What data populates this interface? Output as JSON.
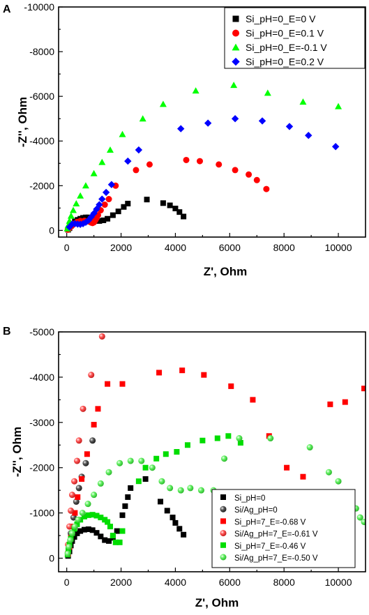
{
  "chart_data": [
    {
      "panel_label": "A",
      "type": "scatter",
      "xlabel": "Z', Ohm",
      "ylabel": "-Z'', Ohm",
      "xlim": [
        -300,
        11000
      ],
      "ylim": [
        -300,
        10000
      ],
      "y_axis_inverted_sign_labels": true,
      "xticks": [
        0,
        2000,
        4000,
        6000,
        8000,
        10000
      ],
      "xtick_labels": [
        "0",
        "2000",
        "4000",
        "6000",
        "8000",
        "10000"
      ],
      "yticks": [
        0,
        2000,
        4000,
        6000,
        8000,
        10000
      ],
      "ytick_labels": [
        "0",
        "-2000",
        "-4000",
        "-6000",
        "-8000",
        "-10000"
      ],
      "legend_position": "top-right",
      "grid": false,
      "series": [
        {
          "name": "Si_pH=0_E=0 V",
          "marker": "square",
          "color": "#000000",
          "points": [
            [
              50,
              30
            ],
            [
              100,
              100
            ],
            [
              150,
              200
            ],
            [
              220,
              300
            ],
            [
              300,
              400
            ],
            [
              400,
              470
            ],
            [
              500,
              520
            ],
            [
              600,
              560
            ],
            [
              700,
              580
            ],
            [
              800,
              580
            ],
            [
              900,
              540
            ],
            [
              1000,
              480
            ],
            [
              1100,
              440
            ],
            [
              1200,
              420
            ],
            [
              1350,
              450
            ],
            [
              1500,
              520
            ],
            [
              1700,
              680
            ],
            [
              1900,
              850
            ],
            [
              2100,
              1050
            ],
            [
              2250,
              1200
            ],
            [
              2950,
              1380
            ],
            [
              3550,
              1220
            ],
            [
              3800,
              1120
            ],
            [
              4000,
              980
            ],
            [
              4150,
              820
            ],
            [
              4300,
              620
            ]
          ]
        },
        {
          "name": "Si_pH=0_E=0.1 V",
          "marker": "circle",
          "color": "#ff0000",
          "points": [
            [
              40,
              30
            ],
            [
              80,
              80
            ],
            [
              130,
              150
            ],
            [
              200,
              220
            ],
            [
              280,
              300
            ],
            [
              380,
              380
            ],
            [
              500,
              420
            ],
            [
              650,
              430
            ],
            [
              800,
              400
            ],
            [
              900,
              350
            ],
            [
              950,
              330
            ],
            [
              1000,
              360
            ],
            [
              1050,
              450
            ],
            [
              1100,
              550
            ],
            [
              1150,
              680
            ],
            [
              1250,
              900
            ],
            [
              1400,
              1150
            ],
            [
              1550,
              1400
            ],
            [
              1800,
              2000
            ],
            [
              2550,
              2700
            ],
            [
              3050,
              2950
            ],
            [
              4400,
              3150
            ],
            [
              4900,
              3100
            ],
            [
              5600,
              2950
            ],
            [
              6200,
              2700
            ],
            [
              6700,
              2500
            ],
            [
              7000,
              2250
            ],
            [
              7350,
              1850
            ]
          ]
        },
        {
          "name": "Si_pH=0_E=-0.1 V",
          "marker": "triangle",
          "color": "#00ff00",
          "points": [
            [
              20,
              80
            ],
            [
              50,
              220
            ],
            [
              100,
              420
            ],
            [
              160,
              650
            ],
            [
              240,
              900
            ],
            [
              350,
              1200
            ],
            [
              500,
              1550
            ],
            [
              700,
              2000
            ],
            [
              1000,
              2550
            ],
            [
              1300,
              3050
            ],
            [
              1600,
              3600
            ],
            [
              2050,
              4300
            ],
            [
              2800,
              5000
            ],
            [
              3550,
              5650
            ],
            [
              4750,
              6250
            ],
            [
              6150,
              6500
            ],
            [
              7400,
              6150
            ],
            [
              8700,
              5750
            ],
            [
              10000,
              5550
            ]
          ]
        },
        {
          "name": "Si_pH=0_E=0.2 V",
          "marker": "diamond",
          "color": "#0000ff",
          "points": [
            [
              100,
              150
            ],
            [
              200,
              280
            ],
            [
              300,
              300
            ],
            [
              400,
              280
            ],
            [
              500,
              270
            ],
            [
              600,
              300
            ],
            [
              700,
              360
            ],
            [
              800,
              450
            ],
            [
              900,
              600
            ],
            [
              1000,
              760
            ],
            [
              1100,
              950
            ],
            [
              1200,
              1150
            ],
            [
              1300,
              1400
            ],
            [
              1450,
              1700
            ],
            [
              1650,
              2050
            ],
            [
              2250,
              3100
            ],
            [
              2650,
              3600
            ],
            [
              4200,
              4550
            ],
            [
              5200,
              4800
            ],
            [
              6200,
              5000
            ],
            [
              7200,
              4900
            ],
            [
              8200,
              4650
            ],
            [
              8900,
              4250
            ],
            [
              9900,
              3750
            ]
          ]
        }
      ]
    },
    {
      "panel_label": "B",
      "type": "scatter",
      "xlabel": "Z', Ohm",
      "ylabel": "-Z'', Ohm",
      "xlim": [
        -300,
        11000
      ],
      "ylim": [
        -300,
        5000
      ],
      "y_axis_inverted_sign_labels": true,
      "xticks": [
        0,
        2000,
        4000,
        6000,
        8000,
        10000
      ],
      "xtick_labels": [
        "0",
        "2000",
        "4000",
        "6000",
        "8000",
        "10000"
      ],
      "yticks": [
        0,
        1000,
        2000,
        3000,
        4000,
        5000
      ],
      "ytick_labels": [
        "0",
        "-1000",
        "-2000",
        "-3000",
        "-4000",
        "-5000"
      ],
      "legend_position": "bottom-right",
      "grid": false,
      "series": [
        {
          "name": "Si_pH=0",
          "marker": "square",
          "color": "#000000",
          "points": [
            [
              50,
              50
            ],
            [
              100,
              150
            ],
            [
              150,
              280
            ],
            [
              200,
              380
            ],
            [
              280,
              470
            ],
            [
              380,
              550
            ],
            [
              500,
              600
            ],
            [
              650,
              630
            ],
            [
              800,
              640
            ],
            [
              950,
              620
            ],
            [
              1100,
              560
            ],
            [
              1250,
              480
            ],
            [
              1400,
              400
            ],
            [
              1550,
              380
            ],
            [
              1700,
              450
            ],
            [
              1850,
              600
            ],
            [
              2050,
              950
            ],
            [
              2150,
              1150
            ],
            [
              2250,
              1350
            ],
            [
              2350,
              1550
            ],
            [
              2900,
              1750
            ],
            [
              3450,
              1250
            ],
            [
              3700,
              1050
            ],
            [
              3900,
              900
            ],
            [
              4000,
              780
            ],
            [
              4150,
              650
            ],
            [
              4300,
              520
            ]
          ]
        },
        {
          "name": "Si/Ag_pH=0",
          "marker": "sphere",
          "color": "#222222",
          "points": [
            [
              80,
              250
            ],
            [
              150,
              550
            ],
            [
              250,
              900
            ],
            [
              350,
              1250
            ],
            [
              450,
              1550
            ],
            [
              550,
              1800
            ],
            [
              700,
              2100
            ],
            [
              950,
              2600
            ]
          ]
        },
        {
          "name": "Si_pH=7_E=-0.68 V",
          "marker": "square",
          "color": "#ff0000",
          "points": [
            [
              50,
              100
            ],
            [
              100,
              250
            ],
            [
              150,
              450
            ],
            [
              220,
              700
            ],
            [
              300,
              1000
            ],
            [
              400,
              1350
            ],
            [
              550,
              1750
            ],
            [
              750,
              2300
            ],
            [
              1000,
              2950
            ],
            [
              1150,
              3300
            ],
            [
              1500,
              3850
            ],
            [
              2050,
              3850
            ],
            [
              3400,
              4100
            ],
            [
              4250,
              4150
            ],
            [
              5050,
              4050
            ],
            [
              6050,
              3800
            ],
            [
              6850,
              3500
            ],
            [
              7450,
              2700
            ],
            [
              8100,
              2000
            ],
            [
              8700,
              1800
            ],
            [
              9700,
              3400
            ],
            [
              10250,
              3450
            ],
            [
              10950,
              3750
            ]
          ]
        },
        {
          "name": "Si/Ag_pH=7_E=-0.61 V",
          "marker": "sphere",
          "color": "#ff2020",
          "points": [
            [
              50,
              300
            ],
            [
              100,
              700
            ],
            [
              150,
              1050
            ],
            [
              200,
              1400
            ],
            [
              280,
              1700
            ],
            [
              380,
              2150
            ],
            [
              450,
              2600
            ],
            [
              600,
              3300
            ],
            [
              900,
              4050
            ],
            [
              1300,
              4900
            ]
          ]
        },
        {
          "name": "Si_pH=7_E=-0.46 V",
          "marker": "square",
          "color": "#00dd00",
          "points": [
            [
              30,
              80
            ],
            [
              60,
              180
            ],
            [
              100,
              300
            ],
            [
              150,
              430
            ],
            [
              200,
              550
            ],
            [
              280,
              650
            ],
            [
              380,
              750
            ],
            [
              500,
              850
            ],
            [
              650,
              920
            ],
            [
              800,
              950
            ],
            [
              950,
              960
            ],
            [
              1100,
              940
            ],
            [
              1250,
              900
            ],
            [
              1400,
              850
            ],
            [
              1500,
              800
            ],
            [
              1600,
              700
            ],
            [
              1700,
              500
            ],
            [
              1800,
              350
            ],
            [
              1950,
              350
            ],
            [
              2050,
              600
            ],
            [
              2650,
              1700
            ],
            [
              2900,
              2000
            ],
            [
              3300,
              2200
            ],
            [
              3650,
              2300
            ],
            [
              4050,
              2350
            ],
            [
              4450,
              2500
            ],
            [
              5000,
              2600
            ],
            [
              5550,
              2650
            ],
            [
              5950,
              2700
            ],
            [
              6400,
              2550
            ]
          ]
        },
        {
          "name": "Si/Ag_pH=7_E=-0.50 V",
          "marker": "sphere",
          "color": "#33ee33",
          "points": [
            [
              40,
              100
            ],
            [
              80,
              250
            ],
            [
              130,
              400
            ],
            [
              200,
              550
            ],
            [
              300,
              700
            ],
            [
              420,
              850
            ],
            [
              580,
              1000
            ],
            [
              780,
              1200
            ],
            [
              1000,
              1400
            ],
            [
              1250,
              1650
            ],
            [
              1550,
              1900
            ],
            [
              1950,
              2100
            ],
            [
              2350,
              2150
            ],
            [
              2750,
              2150
            ],
            [
              3150,
              2000
            ],
            [
              3500,
              1700
            ],
            [
              3800,
              1550
            ],
            [
              4200,
              1500
            ],
            [
              4550,
              1550
            ],
            [
              4950,
              1500
            ],
            [
              5400,
              1500
            ],
            [
              5800,
              2200
            ],
            [
              6350,
              2650
            ],
            [
              7500,
              2650
            ],
            [
              8950,
              2450
            ],
            [
              9650,
              1900
            ],
            [
              10000,
              1700
            ],
            [
              10400,
              1400
            ],
            [
              10650,
              1100
            ],
            [
              10800,
              900
            ],
            [
              10950,
              800
            ]
          ]
        }
      ]
    }
  ]
}
